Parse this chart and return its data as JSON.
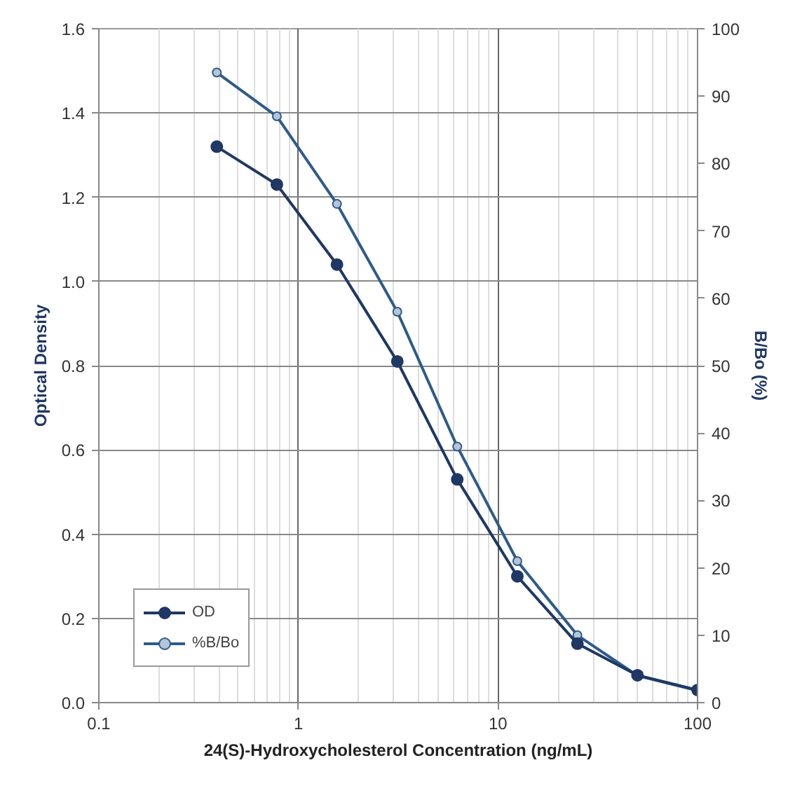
{
  "chart_data": {
    "type": "line",
    "xlabel": "24(S)-Hydroxycholesterol Concentration (ng/mL)",
    "ylabel": "Optical Density",
    "y2label": "B/Bo (%)",
    "x": [
      0.39,
      0.78,
      1.56,
      3.13,
      6.25,
      12.5,
      25,
      50,
      100
    ],
    "series": [
      {
        "name": "OD",
        "color": "#1f3864",
        "values": [
          1.32,
          1.23,
          1.04,
          0.81,
          0.53,
          0.3,
          0.14,
          0.065,
          0.03
        ]
      },
      {
        "name": "%B/Bo",
        "color": "#2e5b8a",
        "axis": "y2",
        "values": [
          93.5,
          87,
          74,
          58,
          38,
          21,
          10,
          4,
          1.8
        ]
      }
    ],
    "log": "x",
    "xlim": [
      0.1,
      100
    ],
    "xticks": [
      0.1,
      1,
      10,
      100
    ],
    "ylim": [
      0,
      1.6
    ],
    "yticks": [
      {
        "value": 0,
        "label": "0.0"
      },
      {
        "value": 0.2,
        "label": "0.2"
      },
      {
        "value": 0.4,
        "label": "0.4"
      },
      {
        "value": 0.6,
        "label": "0.6"
      },
      {
        "value": 0.8,
        "label": "0.8"
      },
      {
        "value": 1.0,
        "label": "1.0"
      },
      {
        "value": 1.2,
        "label": "1.2"
      },
      {
        "value": 1.4,
        "label": "1.4"
      },
      {
        "value": 1.6,
        "label": "1.6"
      }
    ],
    "y2lim": [
      0,
      100
    ],
    "y2ticks": [
      0,
      10,
      20,
      30,
      40,
      50,
      60,
      70,
      80,
      90,
      100
    ],
    "grid": true,
    "legend": "bottom left",
    "marker": "circle",
    "line_style": "solid"
  }
}
